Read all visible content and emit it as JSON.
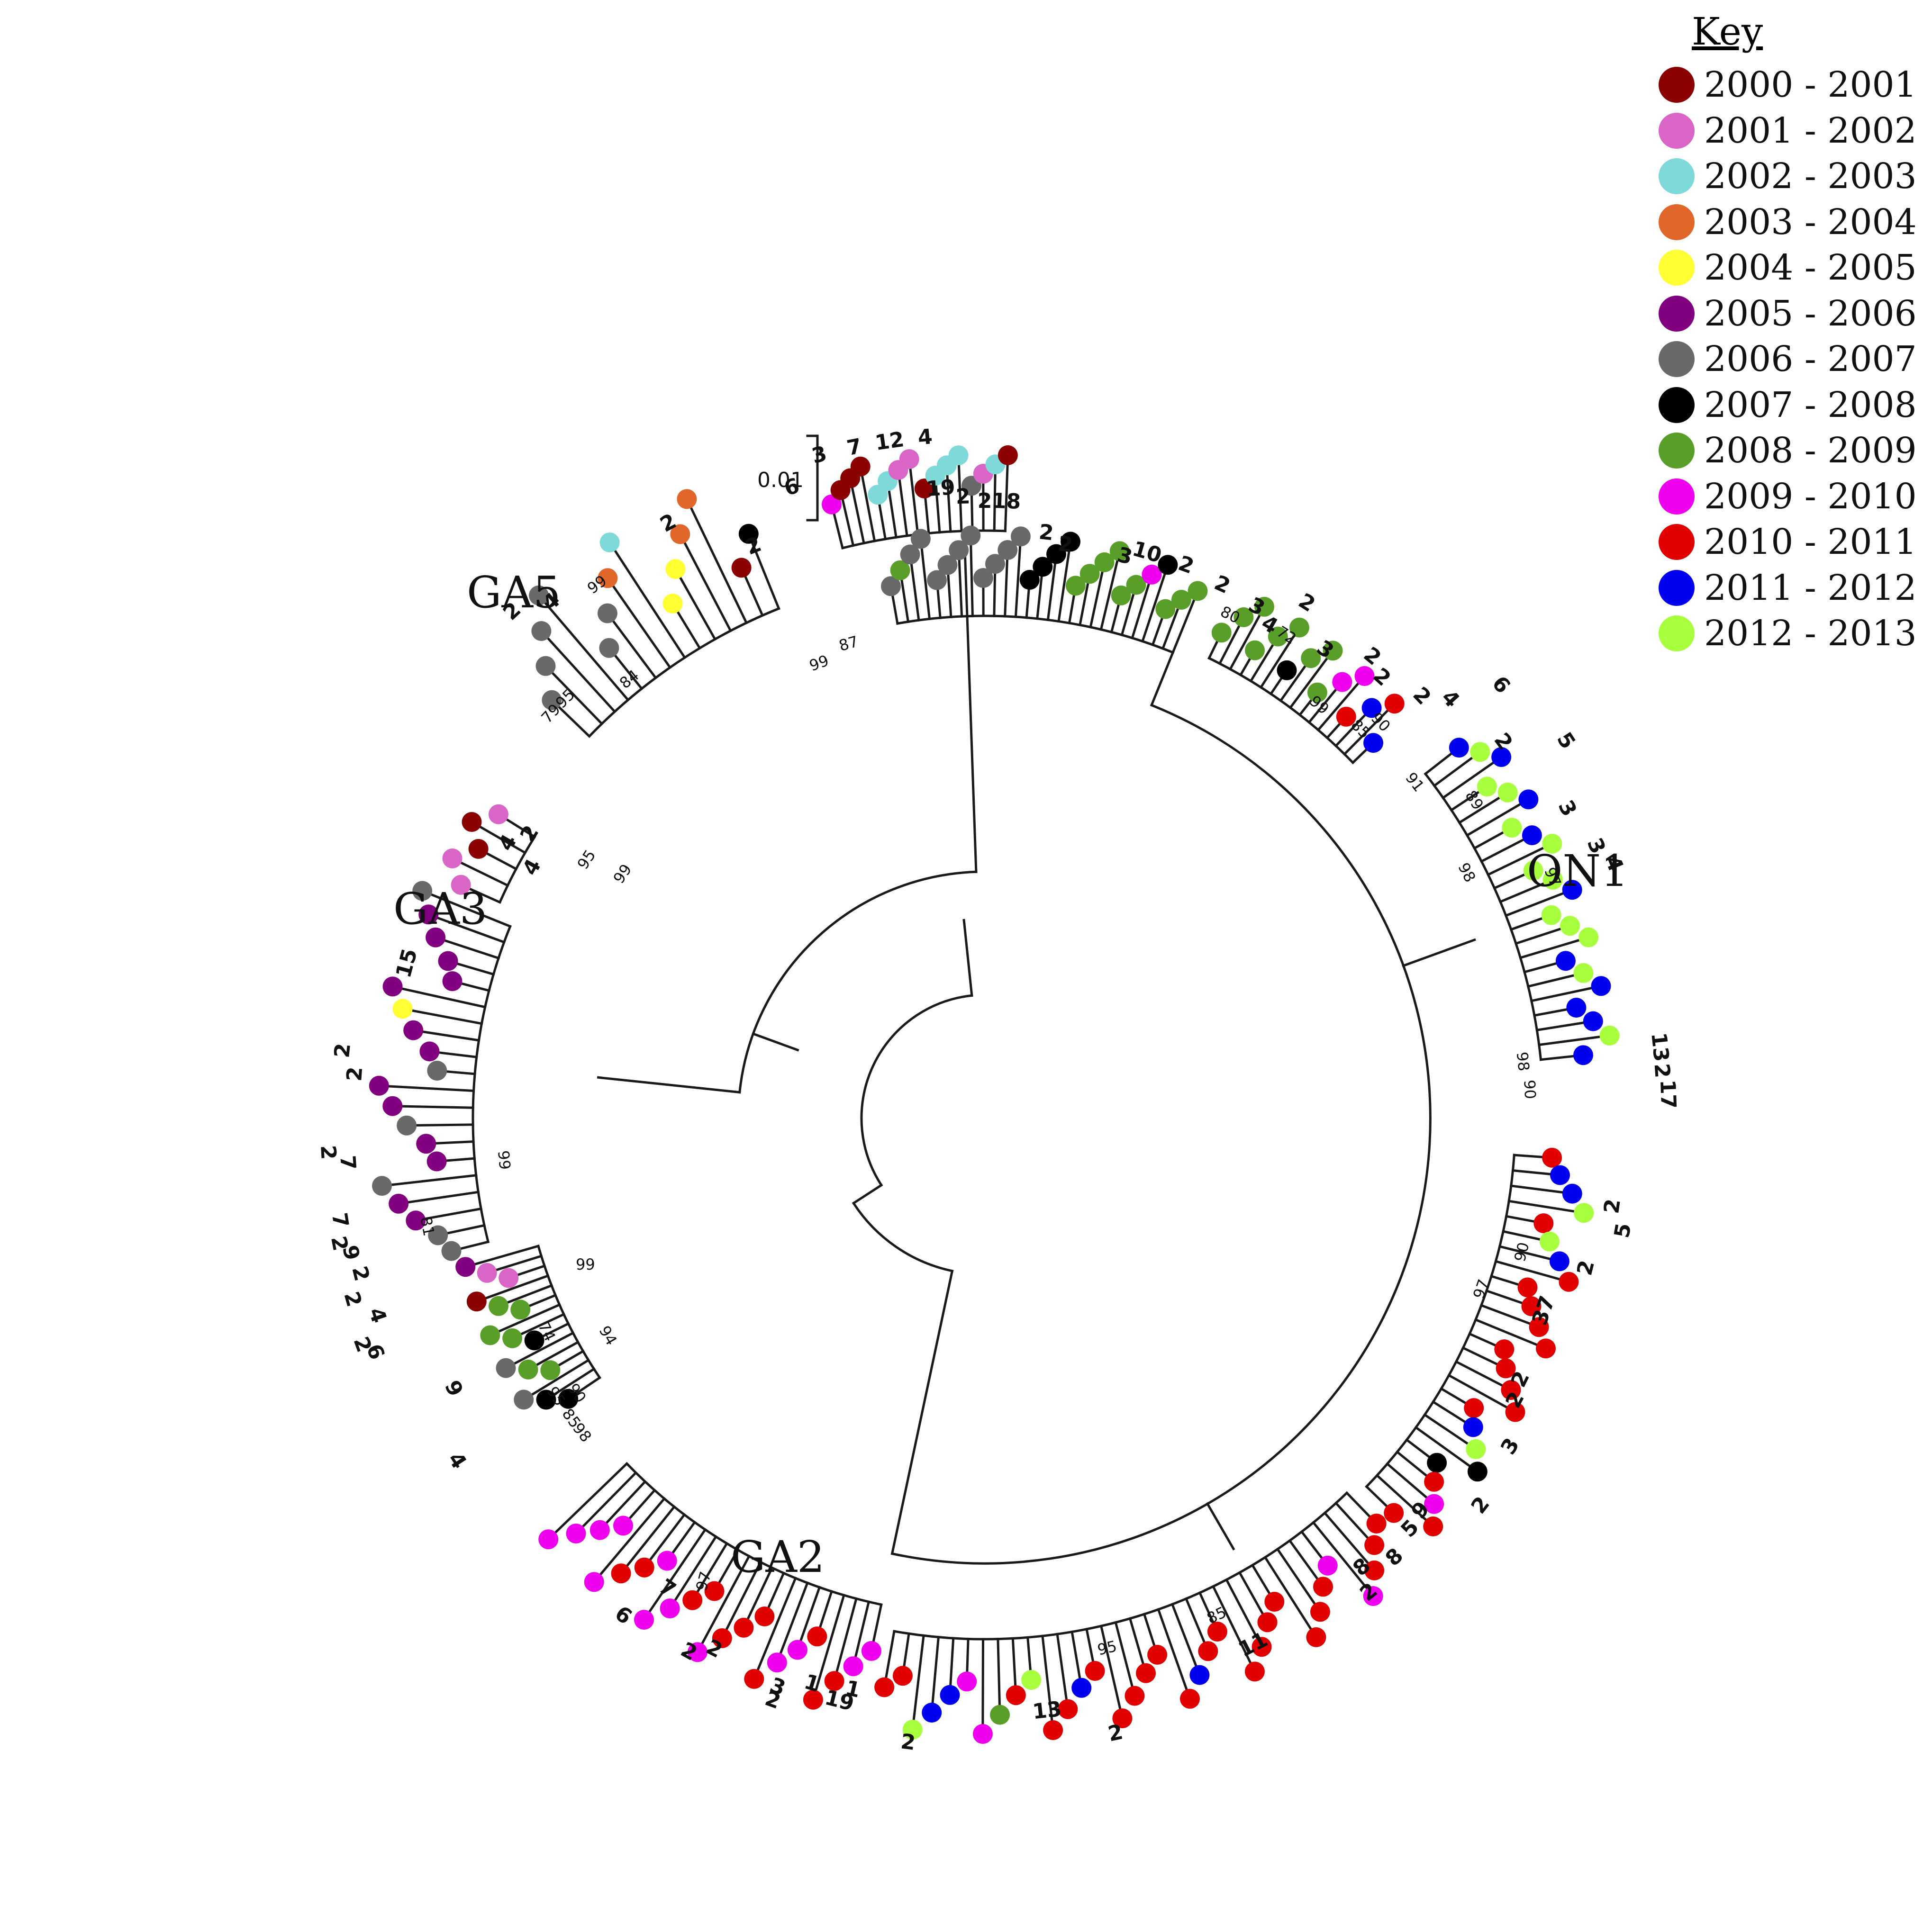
{
  "key": {
    "title": "Key",
    "entries": [
      {
        "label": "2000 - 2001",
        "color": "#8b0000"
      },
      {
        "label": "2001 - 2002",
        "color": "#d966c6"
      },
      {
        "label": "2002 - 2003",
        "color": "#7fd9d9"
      },
      {
        "label": "2003 - 2004",
        "color": "#e0662a"
      },
      {
        "label": "2004 - 2005",
        "color": "#ffff33"
      },
      {
        "label": "2005 - 2006",
        "color": "#800080"
      },
      {
        "label": "2006 - 2007",
        "color": "#696969"
      },
      {
        "label": "2007 - 2008",
        "color": "#000000"
      },
      {
        "label": "2008 - 2009",
        "color": "#5a9e2a"
      },
      {
        "label": "2009 - 2010",
        "color": "#ee00ee"
      },
      {
        "label": "2010 - 2011",
        "color": "#e00000"
      },
      {
        "label": "2011 - 2012",
        "color": "#0000ee"
      },
      {
        "label": "2012 - 2013",
        "color": "#a8ff3e"
      }
    ]
  },
  "scale_bar": {
    "label": "0.01"
  },
  "clades": {
    "ga5": "GA5",
    "ga3": "GA3",
    "on1": "ON1",
    "ga2": "GA2"
  },
  "root_bootstrap": "99",
  "ga2_bootstrap": "97",
  "branch_bootstraps": {
    "ga5_main": "99",
    "ga5_a": "99",
    "ga5_b": "87",
    "ga5_c": "84",
    "ga5_d": "95",
    "ga5_e": "79",
    "ga3_a": "95",
    "ga3_b": "99",
    "ga3_c": "99",
    "ga3_d": "81",
    "ga3_e": "74",
    "ga3_f": "94",
    "ga3_g": "95",
    "ga3_h": "90",
    "ga3_i": "85",
    "ga3_j": "98",
    "on1_a": "80",
    "on1_b": "72",
    "on1_c": "99",
    "on1_d": "85",
    "on1_e": "90",
    "on1_f": "91",
    "on1_g": "89",
    "on1_h": "98",
    "on1_i": "97",
    "ga2_a": "98",
    "ga2_b": "90",
    "ga2_c": "90",
    "ga2_d": "97",
    "ga2_e": "85",
    "ga2_f": "95"
  },
  "count_labels": {
    "ga5": [
      "4",
      "12",
      "7",
      "3",
      "6",
      "2",
      "2",
      "4",
      "2"
    ],
    "ga3": [
      "4",
      "2",
      "4",
      "15",
      "2",
      "2",
      "2",
      "7",
      "7",
      "2",
      "9",
      "2",
      "2",
      "4",
      "2",
      "6",
      "9",
      "4"
    ],
    "on1": [
      "19",
      "2",
      "2",
      "18",
      "2",
      "2",
      "3",
      "10",
      "2",
      "2",
      "3",
      "4",
      "2",
      "3",
      "2",
      "2",
      "2",
      "4",
      "6",
      "2",
      "5",
      "3",
      "3",
      "4",
      "13",
      "2",
      "17"
    ],
    "ga2": [
      "2",
      "5",
      "2",
      "37",
      "2",
      "2",
      "3",
      "2",
      "9",
      "5",
      "8",
      "8",
      "2",
      "11",
      "2",
      "13",
      "2",
      "19",
      "3",
      "6",
      "2",
      "2",
      "2",
      "1",
      "1",
      "7"
    ]
  }
}
